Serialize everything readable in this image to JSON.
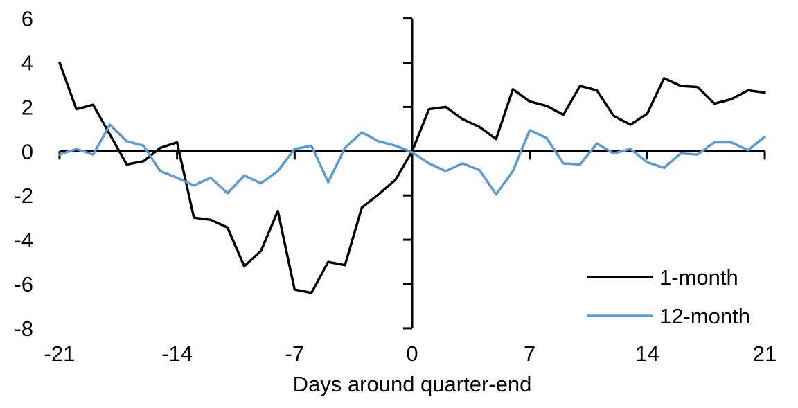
{
  "chart_data": {
    "type": "line",
    "title": "",
    "xlabel": "Days around quarter-end",
    "ylabel": "",
    "xlim": [
      -21,
      21
    ],
    "ylim": [
      -8,
      6
    ],
    "grid": false,
    "legend_position": "lower right",
    "x_ticks": [
      -21,
      -14,
      -7,
      0,
      7,
      14,
      21
    ],
    "y_ticks": [
      6,
      4,
      2,
      0,
      -2,
      -4,
      -6,
      -8
    ],
    "x": [
      -21,
      -20,
      -19,
      -18,
      -17,
      -16,
      -15,
      -14,
      -13,
      -12,
      -11,
      -10,
      -9,
      -8,
      -7,
      -6,
      -5,
      -4,
      -3,
      -2,
      -1,
      0,
      1,
      2,
      3,
      4,
      5,
      6,
      7,
      8,
      9,
      10,
      11,
      12,
      13,
      14,
      15,
      16,
      17,
      18,
      19,
      20,
      21
    ],
    "series": [
      {
        "name": "1-month",
        "color": "#000000",
        "values": [
          4.0,
          1.9,
          2.1,
          0.75,
          -0.6,
          -0.45,
          0.15,
          0.4,
          -3.0,
          -3.1,
          -3.45,
          -5.2,
          -4.5,
          -2.7,
          -6.25,
          -6.4,
          -5.0,
          -5.15,
          -2.55,
          -1.95,
          -1.3,
          0.0,
          1.9,
          2.0,
          1.45,
          1.1,
          0.55,
          2.8,
          2.25,
          2.05,
          1.65,
          2.95,
          2.75,
          1.6,
          1.2,
          1.7,
          3.3,
          2.95,
          2.9,
          2.15,
          2.35,
          2.75,
          2.65
        ]
      },
      {
        "name": "12-month",
        "color": "#5B9BD5",
        "values": [
          -0.15,
          0.1,
          -0.15,
          1.2,
          0.45,
          0.25,
          -0.9,
          -1.2,
          -1.55,
          -1.2,
          -1.9,
          -1.1,
          -1.45,
          -0.9,
          0.1,
          0.25,
          -1.4,
          0.15,
          0.85,
          0.45,
          0.25,
          -0.05,
          -0.55,
          -0.9,
          -0.55,
          -0.85,
          -1.95,
          -0.9,
          0.95,
          0.6,
          -0.55,
          -0.6,
          0.35,
          -0.1,
          0.1,
          -0.5,
          -0.75,
          -0.1,
          -0.15,
          0.4,
          0.4,
          0.05,
          0.65
        ]
      }
    ]
  }
}
